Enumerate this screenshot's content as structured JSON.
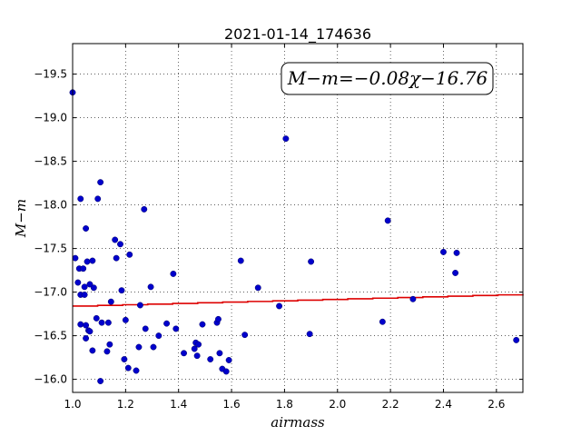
{
  "chart_data": {
    "type": "scatter",
    "title": "2021-01-14_174636",
    "xlabel": "airmass",
    "ylabel": "M−m",
    "xlim": [
      1.0,
      2.7
    ],
    "ylim": [
      -19.85,
      -15.85
    ],
    "y_inverted": true,
    "grid": true,
    "x_ticks": [
      1.0,
      1.2,
      1.4,
      1.6,
      1.8,
      2.0,
      2.2,
      2.4,
      2.6
    ],
    "x_tick_labels": [
      "1.0",
      "1.2",
      "1.4",
      "1.6",
      "1.8",
      "2.0",
      "2.2",
      "2.4",
      "2.6"
    ],
    "y_ticks": [
      -16.0,
      -16.5,
      -17.0,
      -17.5,
      -18.0,
      -18.5,
      -19.0,
      -19.5
    ],
    "y_tick_labels": [
      "−16.0",
      "−16.5",
      "−17.0",
      "−17.5",
      "−18.0",
      "−18.5",
      "−19.0",
      "−19.5"
    ],
    "annotation": "M−m=−0.08χ−16.76",
    "marker_color": "#0000cc",
    "fit_color": "#dd0000",
    "fit": {
      "slope": -0.08,
      "intercept": -16.76
    },
    "series": [
      {
        "points": [
          [
            1.0,
            -19.29
          ],
          [
            1.01,
            -17.39
          ],
          [
            1.02,
            -17.11
          ],
          [
            1.025,
            -17.27
          ],
          [
            1.03,
            -16.97
          ],
          [
            1.03,
            -18.07
          ],
          [
            1.03,
            -16.63
          ],
          [
            1.04,
            -17.27
          ],
          [
            1.045,
            -16.97
          ],
          [
            1.045,
            -17.06
          ],
          [
            1.05,
            -16.62
          ],
          [
            1.05,
            -16.47
          ],
          [
            1.05,
            -17.73
          ],
          [
            1.055,
            -17.35
          ],
          [
            1.06,
            -16.56
          ],
          [
            1.065,
            -16.55
          ],
          [
            1.065,
            -17.09
          ],
          [
            1.075,
            -16.33
          ],
          [
            1.075,
            -17.36
          ],
          [
            1.08,
            -17.05
          ],
          [
            1.09,
            -16.7
          ],
          [
            1.095,
            -18.07
          ],
          [
            1.105,
            -15.98
          ],
          [
            1.105,
            -18.26
          ],
          [
            1.11,
            -16.65
          ],
          [
            1.13,
            -16.32
          ],
          [
            1.135,
            -16.65
          ],
          [
            1.14,
            -16.4
          ],
          [
            1.145,
            -16.89
          ],
          [
            1.16,
            -17.6
          ],
          [
            1.165,
            -17.39
          ],
          [
            1.18,
            -17.55
          ],
          [
            1.185,
            -17.02
          ],
          [
            1.195,
            -16.23
          ],
          [
            1.2,
            -16.68
          ],
          [
            1.21,
            -16.13
          ],
          [
            1.215,
            -17.43
          ],
          [
            1.24,
            -16.1
          ],
          [
            1.25,
            -16.37
          ],
          [
            1.255,
            -16.85
          ],
          [
            1.27,
            -17.95
          ],
          [
            1.275,
            -16.58
          ],
          [
            1.295,
            -17.06
          ],
          [
            1.305,
            -16.37
          ],
          [
            1.325,
            -16.5
          ],
          [
            1.355,
            -16.64
          ],
          [
            1.38,
            -17.21
          ],
          [
            1.39,
            -16.58
          ],
          [
            1.42,
            -16.3
          ],
          [
            1.46,
            -16.35
          ],
          [
            1.465,
            -16.42
          ],
          [
            1.47,
            -16.27
          ],
          [
            1.475,
            -16.4
          ],
          [
            1.49,
            -16.63
          ],
          [
            1.52,
            -16.23
          ],
          [
            1.545,
            -16.65
          ],
          [
            1.55,
            -16.69
          ],
          [
            1.555,
            -16.3
          ],
          [
            1.565,
            -16.12
          ],
          [
            1.58,
            -16.09
          ],
          [
            1.59,
            -16.22
          ],
          [
            1.635,
            -17.36
          ],
          [
            1.65,
            -16.51
          ],
          [
            1.7,
            -17.05
          ],
          [
            1.78,
            -16.84
          ],
          [
            1.805,
            -18.76
          ],
          [
            1.895,
            -16.52
          ],
          [
            1.9,
            -17.35
          ],
          [
            2.17,
            -16.66
          ],
          [
            2.19,
            -17.82
          ],
          [
            2.285,
            -16.92
          ],
          [
            2.4,
            -17.46
          ],
          [
            2.445,
            -17.22
          ],
          [
            2.45,
            -17.45
          ],
          [
            2.675,
            -16.45
          ]
        ]
      }
    ]
  }
}
